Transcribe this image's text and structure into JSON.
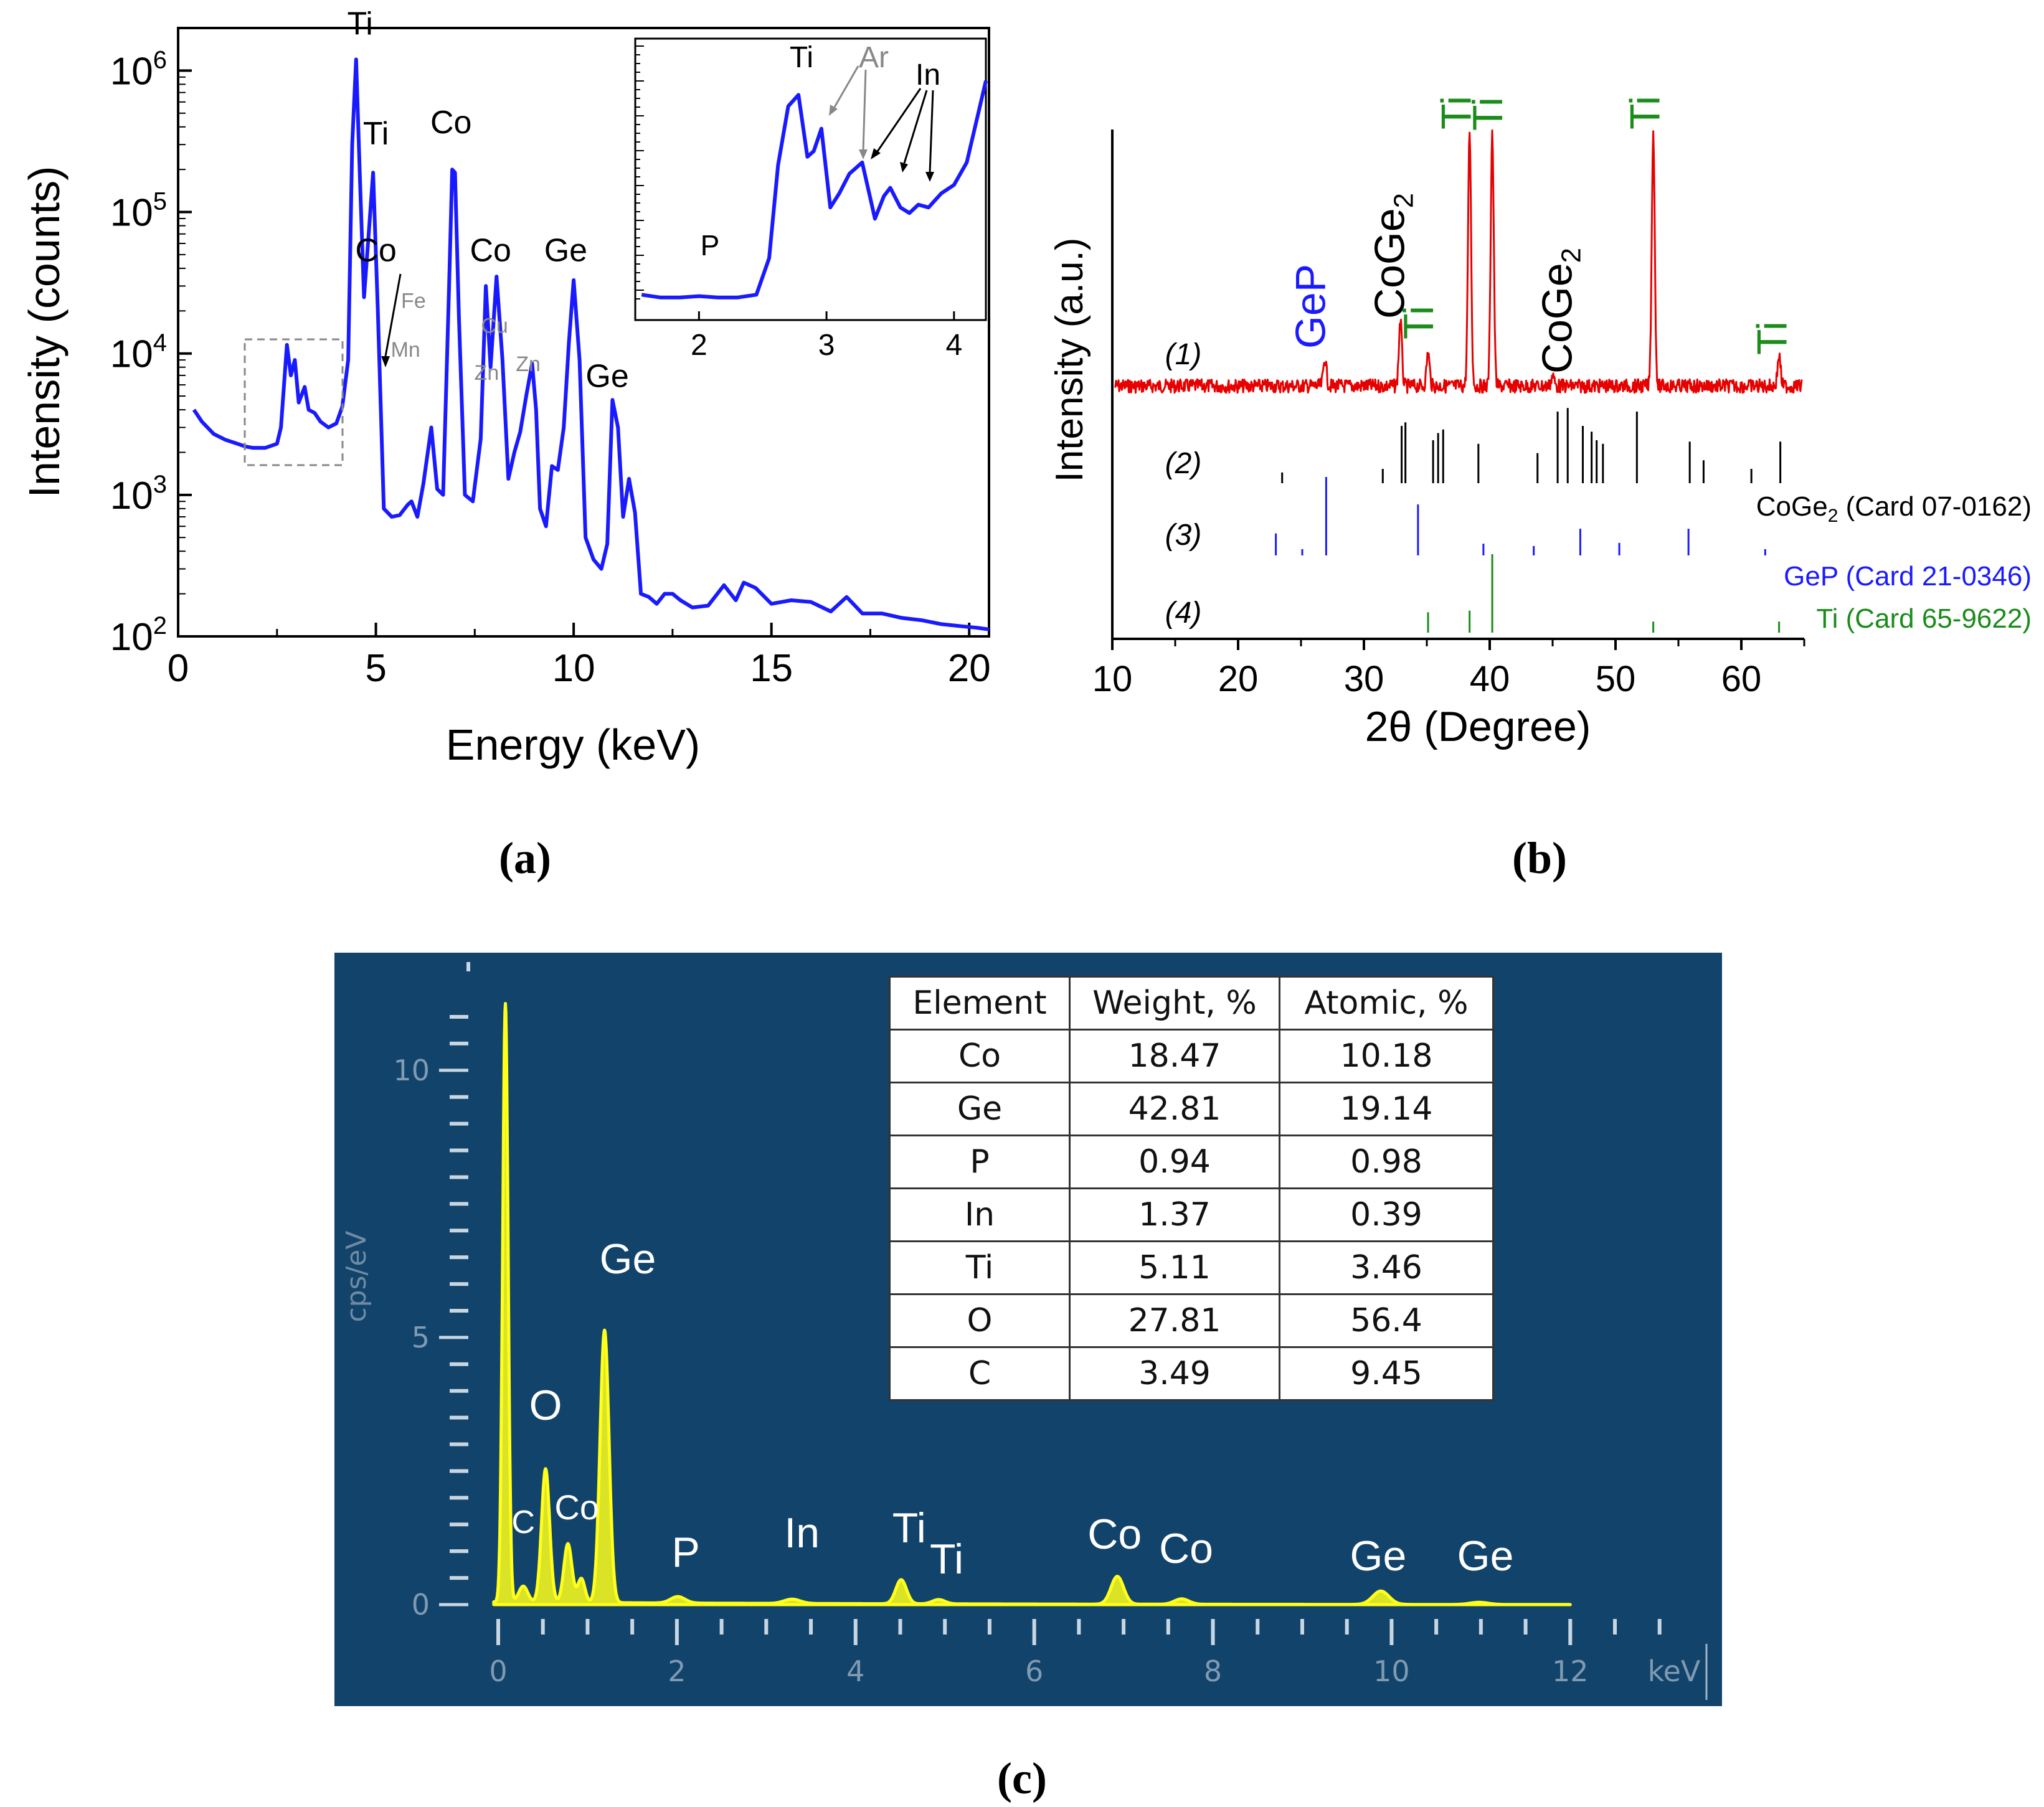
{
  "panel_labels": {
    "a": "(a)",
    "b": "(b)",
    "c": "(c)"
  },
  "chart_data": [
    {
      "id": "a",
      "type": "line",
      "xlabel": "Energy (keV)",
      "ylabel": "Intensity (counts)",
      "xlim": [
        0,
        20.5
      ],
      "ylim": [
        100,
        2000000
      ],
      "yscale": "log",
      "xticks": [
        "0",
        "5",
        "10",
        "15",
        "20"
      ],
      "yticks": [
        {
          "base": "10",
          "exp": "2"
        },
        {
          "base": "10",
          "exp": "3"
        },
        {
          "base": "10",
          "exp": "4"
        },
        {
          "base": "10",
          "exp": "5"
        },
        {
          "base": "10",
          "exp": "6"
        }
      ],
      "grid": false,
      "series": [
        {
          "color": "#1a1aff",
          "x": [
            0.4,
            0.6,
            0.9,
            1.2,
            1.5,
            1.7,
            1.9,
            2.2,
            2.5,
            2.6,
            2.75,
            2.85,
            2.95,
            3.05,
            3.2,
            3.3,
            3.45,
            3.6,
            3.8,
            4.0,
            4.15,
            4.3,
            4.4,
            4.5,
            4.6,
            4.7,
            4.8,
            4.93,
            5.05,
            5.2,
            5.4,
            5.6,
            5.8,
            5.9,
            6.05,
            6.2,
            6.4,
            6.55,
            6.7,
            6.85,
            6.93,
            7.0,
            7.1,
            7.25,
            7.45,
            7.65,
            7.78,
            7.9,
            8.05,
            8.2,
            8.35,
            8.5,
            8.65,
            8.8,
            8.95,
            9.05,
            9.15,
            9.3,
            9.45,
            9.6,
            9.75,
            9.88,
            10.0,
            10.15,
            10.3,
            10.5,
            10.7,
            10.85,
            10.98,
            11.12,
            11.25,
            11.4,
            11.55,
            11.7,
            11.9,
            12.1,
            12.3,
            12.5,
            12.7,
            13.0,
            13.4,
            13.8,
            14.1,
            14.3,
            14.6,
            15.0,
            15.5,
            16.0,
            16.5,
            16.9,
            17.3,
            17.8,
            18.3,
            18.8,
            19.3,
            19.8,
            20.2,
            20.5
          ],
          "y": [
            4000,
            3300,
            2700,
            2450,
            2300,
            2200,
            2150,
            2150,
            2300,
            3000,
            11500,
            7000,
            9000,
            4500,
            5800,
            4000,
            3800,
            3300,
            3000,
            3200,
            4200,
            9000,
            300000,
            1200000,
            160000,
            25000,
            60000,
            190000,
            20000,
            800,
            700,
            720,
            850,
            900,
            700,
            1200,
            3000,
            1100,
            1000,
            30000,
            200000,
            190000,
            18000,
            1000,
            900,
            2500,
            30000,
            8000,
            35000,
            9000,
            1300,
            2000,
            2800,
            5000,
            8500,
            4000,
            800,
            600,
            1600,
            1500,
            3000,
            12000,
            33000,
            9000,
            500,
            350,
            300,
            450,
            4700,
            3000,
            700,
            1300,
            750,
            200,
            190,
            170,
            200,
            200,
            180,
            160,
            165,
            230,
            180,
            240,
            220,
            170,
            180,
            175,
            150,
            190,
            145,
            145,
            135,
            130,
            122,
            118,
            115,
            112
          ]
        }
      ],
      "annotations": [
        {
          "text": "Ti",
          "x": 4.6,
          "y": 1800000,
          "color": "#000000"
        },
        {
          "text": "Ti",
          "x": 5.0,
          "y": 300000,
          "color": "#000000"
        },
        {
          "text": "Co",
          "x": 6.9,
          "y": 360000,
          "color": "#000000"
        },
        {
          "text": "Co",
          "x": 7.9,
          "y": 45000,
          "color": "#000000"
        },
        {
          "text": "Co",
          "x": 5.0,
          "y": 45000,
          "color": "#000000"
        },
        {
          "text": "Fe",
          "x": 5.95,
          "y": 21000,
          "color": "#888888"
        },
        {
          "text": "Mn",
          "x": 5.75,
          "y": 9500,
          "color": "#888888"
        },
        {
          "text": "Cu",
          "x": 8.0,
          "y": 14000,
          "color": "#888888"
        },
        {
          "text": "Zn",
          "x": 7.8,
          "y": 6500,
          "color": "#888888"
        },
        {
          "text": "Zn",
          "x": 8.85,
          "y": 7500,
          "color": "#888888"
        },
        {
          "text": "Ge",
          "x": 9.8,
          "y": 45000,
          "color": "#000000"
        },
        {
          "text": "Ge",
          "x": 10.85,
          "y": 5800,
          "color": "#000000"
        }
      ],
      "inset": {
        "xlim": [
          1.5,
          4.25
        ],
        "xticks": [
          "2",
          "3",
          "4"
        ],
        "series_x": [
          1.55,
          1.7,
          1.85,
          2.0,
          2.15,
          2.3,
          2.45,
          2.55,
          2.62,
          2.7,
          2.78,
          2.85,
          2.9,
          2.96,
          3.03,
          3.1,
          3.18,
          3.28,
          3.38,
          3.45,
          3.5,
          3.58,
          3.65,
          3.72,
          3.8,
          3.9,
          4.0,
          4.1,
          4.25
        ],
        "series_y": [
          0.09,
          0.08,
          0.08,
          0.085,
          0.08,
          0.08,
          0.09,
          0.22,
          0.55,
          0.76,
          0.8,
          0.58,
          0.6,
          0.68,
          0.4,
          0.45,
          0.52,
          0.56,
          0.36,
          0.44,
          0.47,
          0.4,
          0.38,
          0.41,
          0.4,
          0.45,
          0.48,
          0.56,
          0.85
        ],
        "annotations": [
          {
            "text": "Ti",
            "color": "#000000"
          },
          {
            "text": "Ar",
            "color": "#888888"
          },
          {
            "text": "In",
            "color": "#000000"
          },
          {
            "text": "P",
            "color": "#000000"
          }
        ]
      }
    },
    {
      "id": "b",
      "type": "line",
      "xlabel": "2θ (Degree)",
      "ylabel": "Intensity (a.u.)",
      "xlim": [
        10,
        65
      ],
      "xticks": [
        "10",
        "20",
        "30",
        "40",
        "50",
        "60"
      ],
      "row_labels": [
        "(1)",
        "(2)",
        "(3)",
        "(4)"
      ],
      "pattern": {
        "color": "#e60000",
        "peaks": [
          {
            "x": 26.9,
            "height": 0.11
          },
          {
            "x": 32.9,
            "height": 0.26
          },
          {
            "x": 35.1,
            "height": 0.13
          },
          {
            "x": 38.4,
            "height": 1.0
          },
          {
            "x": 40.2,
            "height": 1.0
          },
          {
            "x": 45.0,
            "height": 0.04
          },
          {
            "x": 53.0,
            "height": 1.0
          },
          {
            "x": 63.0,
            "height": 0.12
          }
        ]
      },
      "peak_labels": [
        {
          "text": "GeP",
          "sub": "",
          "color": "#1a1aff"
        },
        {
          "text": "CoGe",
          "sub": "2",
          "color": "#000000"
        },
        {
          "text": "Ti",
          "sub": "",
          "color": "#1a8c1a"
        },
        {
          "text": "Ti",
          "sub": "",
          "color": "#1a8c1a"
        },
        {
          "text": "Ti",
          "sub": "",
          "color": "#1a8c1a"
        },
        {
          "text": "CoGe",
          "sub": "2",
          "color": "#000000"
        },
        {
          "text": "Ti",
          "sub": "",
          "color": "#1a8c1a"
        },
        {
          "text": "Ti",
          "sub": "",
          "color": "#1a8c1a"
        }
      ],
      "reference_cards": [
        {
          "label_main": "CoGe",
          "label_sub": "2",
          "label_rest": " (Card 07-0162)",
          "color": "#000000",
          "lines": [
            [
              23.5,
              0.15
            ],
            [
              31.5,
              0.2
            ],
            [
              33.0,
              0.8
            ],
            [
              33.3,
              0.85
            ],
            [
              35.5,
              0.6
            ],
            [
              35.9,
              0.7
            ],
            [
              36.3,
              0.75
            ],
            [
              39.1,
              0.55
            ],
            [
              43.8,
              0.42
            ],
            [
              45.4,
              1.0
            ],
            [
              46.2,
              1.05
            ],
            [
              47.4,
              0.8
            ],
            [
              48.1,
              0.72
            ],
            [
              48.5,
              0.6
            ],
            [
              49.0,
              0.55
            ],
            [
              51.7,
              1.0
            ],
            [
              55.9,
              0.58
            ],
            [
              57.0,
              0.32
            ],
            [
              60.8,
              0.2
            ],
            [
              63.1,
              0.58
            ]
          ]
        },
        {
          "label_main": "GeP",
          "label_sub": "",
          "label_rest": " (Card 21-0346)",
          "color": "#1a1aff",
          "lines": [
            [
              23.0,
              0.28
            ],
            [
              25.1,
              0.08
            ],
            [
              27.0,
              1.0
            ],
            [
              34.3,
              0.65
            ],
            [
              39.5,
              0.15
            ],
            [
              43.5,
              0.12
            ],
            [
              47.2,
              0.34
            ],
            [
              50.3,
              0.16
            ],
            [
              55.8,
              0.34
            ],
            [
              61.9,
              0.08
            ]
          ]
        },
        {
          "label_main": "Ti",
          "label_sub": "",
          "label_rest": " (Card 65-9622)",
          "color": "#1a8c1a",
          "lines": [
            [
              35.1,
              0.26
            ],
            [
              38.4,
              0.28
            ],
            [
              40.2,
              1.0
            ],
            [
              53.0,
              0.14
            ],
            [
              63.0,
              0.14
            ]
          ]
        }
      ]
    },
    {
      "id": "c",
      "type": "line",
      "xlabel": "keV",
      "ylabel": "cps/eV",
      "xlim": [
        -0.1,
        13.05
      ],
      "ylim": [
        0,
        11
      ],
      "xticks": [
        "0",
        "2",
        "4",
        "6",
        "8",
        "10",
        "12"
      ],
      "yticks": [
        "0",
        "5",
        "10"
      ],
      "background": "#12436b",
      "series": [
        {
          "color": "#ffff1a",
          "peaks": [
            {
              "x": 0.08,
              "height": 11.2,
              "width": 0.03
            },
            {
              "x": 0.28,
              "height": 0.3,
              "width": 0.05
            },
            {
              "x": 0.53,
              "height": 2.5,
              "width": 0.045
            },
            {
              "x": 0.78,
              "height": 1.1,
              "width": 0.045
            },
            {
              "x": 0.93,
              "height": 0.45,
              "width": 0.04
            },
            {
              "x": 1.19,
              "height": 5.1,
              "width": 0.05
            },
            {
              "x": 2.01,
              "height": 0.12,
              "width": 0.08
            },
            {
              "x": 3.29,
              "height": 0.08,
              "width": 0.09
            },
            {
              "x": 4.51,
              "height": 0.45,
              "width": 0.06
            },
            {
              "x": 4.93,
              "height": 0.08,
              "width": 0.07
            },
            {
              "x": 6.93,
              "height": 0.52,
              "width": 0.07
            },
            {
              "x": 7.65,
              "height": 0.1,
              "width": 0.08
            },
            {
              "x": 9.88,
              "height": 0.25,
              "width": 0.09
            },
            {
              "x": 10.98,
              "height": 0.04,
              "width": 0.1
            }
          ]
        }
      ],
      "annotations": [
        {
          "text": "C",
          "x": 0.28
        },
        {
          "text": "O",
          "x": 0.53
        },
        {
          "text": "Co",
          "x": 0.88
        },
        {
          "text": "Ge",
          "x": 1.45
        },
        {
          "text": "P",
          "x": 2.1
        },
        {
          "text": "In",
          "x": 3.4
        },
        {
          "text": "Ti",
          "x": 4.6
        },
        {
          "text": "Ti",
          "x": 5.02
        },
        {
          "text": "Co",
          "x": 6.9
        },
        {
          "text": "Co",
          "x": 7.7
        },
        {
          "text": "Ge",
          "x": 9.85
        },
        {
          "text": "Ge",
          "x": 11.05
        }
      ],
      "table": {
        "headers": [
          "Element",
          "Weight, %",
          "Atomic, %"
        ],
        "rows": [
          [
            "Co",
            "18.47",
            "10.18"
          ],
          [
            "Ge",
            "42.81",
            "19.14"
          ],
          [
            "P",
            "0.94",
            "0.98"
          ],
          [
            "In",
            "1.37",
            "0.39"
          ],
          [
            "Ti",
            "5.11",
            "3.46"
          ],
          [
            "O",
            "27.81",
            "56.4"
          ],
          [
            "C",
            "3.49",
            "9.45"
          ]
        ]
      }
    }
  ]
}
